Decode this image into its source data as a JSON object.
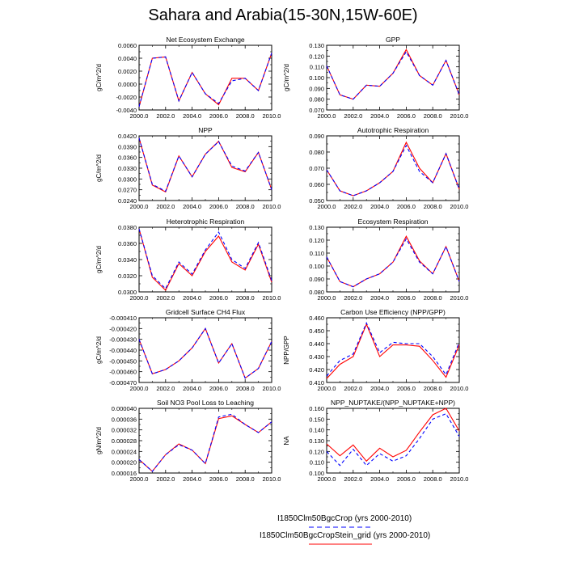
{
  "title": "Sahara and Arabia(15-30N,15W-60E)",
  "legend": [
    {
      "label": "I1850Clm50BgcCrop (yrs 2000-2010)",
      "color": "#0000ff",
      "dash": true
    },
    {
      "label": "I1850Clm50BgcCropStein_grid (yrs 2000-2010)",
      "color": "#ff0000",
      "dash": false
    }
  ],
  "chart_data": [
    {
      "type": "line",
      "title": "Net Ecosystem Exchange",
      "ylabel": "gC/m^2/d",
      "x": [
        2000,
        2001,
        2002,
        2003,
        2004,
        2005,
        2006,
        2007,
        2008,
        2009,
        2010
      ],
      "xticks": [
        2000,
        2002,
        2004,
        2006,
        2008,
        2010
      ],
      "xtick_labels": [
        "2000.0",
        "2002.0",
        "2004.0",
        "2006.0",
        "2008.0",
        "2010.0"
      ],
      "xlim": [
        2000,
        2010
      ],
      "ylim": [
        -0.004,
        0.006
      ],
      "yticks": [
        -0.004,
        -0.002,
        0,
        0.002,
        0.004,
        0.006
      ],
      "ytick_labels": [
        "-0.0040",
        "-0.0020",
        "0.0000",
        "0.0020",
        "0.0040",
        "0.0060"
      ],
      "series": [
        {
          "name": "I1850Clm50BgcCrop (yrs 2000-2010)",
          "color": "#0000ff",
          "dash": true,
          "values": [
            -0.0035,
            0.004,
            0.0042,
            -0.0026,
            0.0018,
            -0.0015,
            -0.003,
            0.0005,
            0.0009,
            -0.001,
            0.0048
          ]
        },
        {
          "name": "I1850Clm50BgcCropStein_grid (yrs 2000-2010)",
          "color": "#ff0000",
          "dash": false,
          "values": [
            -0.0035,
            0.004,
            0.0042,
            -0.0026,
            0.0018,
            -0.0015,
            -0.0032,
            0.0009,
            0.0009,
            -0.001,
            0.0048
          ]
        }
      ]
    },
    {
      "type": "line",
      "title": "GPP",
      "ylabel": "gC/m^2/d",
      "x": [
        2000,
        2001,
        2002,
        2003,
        2004,
        2005,
        2006,
        2007,
        2008,
        2009,
        2010
      ],
      "xticks": [
        2000,
        2002,
        2004,
        2006,
        2008,
        2010
      ],
      "xtick_labels": [
        "2000.0",
        "2002.0",
        "2004.0",
        "2006.0",
        "2008.0",
        "2010.0"
      ],
      "xlim": [
        2000,
        2010
      ],
      "ylim": [
        0.07,
        0.13
      ],
      "yticks": [
        0.07,
        0.08,
        0.09,
        0.1,
        0.11,
        0.12,
        0.13
      ],
      "ytick_labels": [
        "0.070",
        "0.080",
        "0.090",
        "0.100",
        "0.110",
        "0.120",
        "0.130"
      ],
      "series": [
        {
          "name": "I1850Clm50BgcCrop (yrs 2000-2010)",
          "color": "#0000ff",
          "dash": true,
          "values": [
            0.111,
            0.084,
            0.08,
            0.093,
            0.092,
            0.104,
            0.124,
            0.102,
            0.093,
            0.116,
            0.084
          ]
        },
        {
          "name": "I1850Clm50BgcCropStein_grid (yrs 2000-2010)",
          "color": "#ff0000",
          "dash": false,
          "values": [
            0.111,
            0.084,
            0.08,
            0.093,
            0.092,
            0.104,
            0.126,
            0.102,
            0.093,
            0.116,
            0.084
          ]
        }
      ]
    },
    {
      "type": "line",
      "title": "NPP",
      "ylabel": "gC/m^2/d",
      "x": [
        2000,
        2001,
        2002,
        2003,
        2004,
        2005,
        2006,
        2007,
        2008,
        2009,
        2010
      ],
      "xticks": [
        2000,
        2002,
        2004,
        2006,
        2008,
        2010
      ],
      "xtick_labels": [
        "2000.0",
        "2002.0",
        "2004.0",
        "2006.0",
        "2008.0",
        "2010.0"
      ],
      "xlim": [
        2000,
        2010
      ],
      "ylim": [
        0.024,
        0.042
      ],
      "yticks": [
        0.024,
        0.027,
        0.03,
        0.033,
        0.036,
        0.039,
        0.042
      ],
      "ytick_labels": [
        "0.0240",
        "0.0270",
        "0.0300",
        "0.0330",
        "0.0360",
        "0.0390",
        "0.0420"
      ],
      "series": [
        {
          "name": "I1850Clm50BgcCrop (yrs 2000-2010)",
          "color": "#0000ff",
          "dash": true,
          "values": [
            0.0414,
            0.0285,
            0.0266,
            0.0364,
            0.0306,
            0.0369,
            0.0404,
            0.0336,
            0.0322,
            0.0374,
            0.027
          ]
        },
        {
          "name": "I1850Clm50BgcCropStein_grid (yrs 2000-2010)",
          "color": "#ff0000",
          "dash": false,
          "values": [
            0.0414,
            0.0283,
            0.0264,
            0.0364,
            0.0306,
            0.0369,
            0.0405,
            0.0332,
            0.032,
            0.0374,
            0.027
          ]
        }
      ]
    },
    {
      "type": "line",
      "title": "Autotrophic Respiration",
      "ylabel": "",
      "x": [
        2000,
        2001,
        2002,
        2003,
        2004,
        2005,
        2006,
        2007,
        2008,
        2009,
        2010
      ],
      "xticks": [
        2000,
        2002,
        2004,
        2006,
        2008,
        2010
      ],
      "xtick_labels": [
        "2000.0",
        "2002.0",
        "2004.0",
        "2006.0",
        "2008.0",
        "2010.0"
      ],
      "xlim": [
        2000,
        2010
      ],
      "ylim": [
        0.05,
        0.09
      ],
      "yticks": [
        0.05,
        0.06,
        0.07,
        0.08,
        0.09
      ],
      "ytick_labels": [
        "0.050",
        "0.060",
        "0.070",
        "0.080",
        "0.090"
      ],
      "series": [
        {
          "name": "I1850Clm50BgcCrop (yrs 2000-2010)",
          "color": "#0000ff",
          "dash": true,
          "values": [
            0.069,
            0.056,
            0.053,
            0.056,
            0.061,
            0.068,
            0.084,
            0.068,
            0.061,
            0.079,
            0.057
          ]
        },
        {
          "name": "I1850Clm50BgcCropStein_grid (yrs 2000-2010)",
          "color": "#ff0000",
          "dash": false,
          "values": [
            0.069,
            0.056,
            0.053,
            0.056,
            0.061,
            0.068,
            0.086,
            0.07,
            0.061,
            0.079,
            0.057
          ]
        }
      ]
    },
    {
      "type": "line",
      "title": "Heterotrophic Respiration",
      "ylabel": "gC/m^2/d",
      "x": [
        2000,
        2001,
        2002,
        2003,
        2004,
        2005,
        2006,
        2007,
        2008,
        2009,
        2010
      ],
      "xticks": [
        2000,
        2002,
        2004,
        2006,
        2008,
        2010
      ],
      "xtick_labels": [
        "2000.0",
        "2002.0",
        "2004.0",
        "2006.0",
        "2008.0",
        "2010.0"
      ],
      "xlim": [
        2000,
        2010
      ],
      "ylim": [
        0.03,
        0.038
      ],
      "yticks": [
        0.03,
        0.032,
        0.034,
        0.036,
        0.038
      ],
      "ytick_labels": [
        "0.0300",
        "0.0320",
        "0.0340",
        "0.0360",
        "0.0380"
      ],
      "series": [
        {
          "name": "I1850Clm50BgcCrop (yrs 2000-2010)",
          "color": "#0000ff",
          "dash": true,
          "values": [
            0.0378,
            0.032,
            0.0304,
            0.0337,
            0.0322,
            0.0352,
            0.0374,
            0.034,
            0.0329,
            0.0361,
            0.0314
          ]
        },
        {
          "name": "I1850Clm50BgcCropStein_grid (yrs 2000-2010)",
          "color": "#ff0000",
          "dash": false,
          "values": [
            0.0378,
            0.0318,
            0.0302,
            0.0335,
            0.032,
            0.035,
            0.0369,
            0.0337,
            0.0327,
            0.0359,
            0.0312
          ]
        }
      ]
    },
    {
      "type": "line",
      "title": "Ecosystem Respiration",
      "ylabel": "",
      "x": [
        2000,
        2001,
        2002,
        2003,
        2004,
        2005,
        2006,
        2007,
        2008,
        2009,
        2010
      ],
      "xticks": [
        2000,
        2002,
        2004,
        2006,
        2008,
        2010
      ],
      "xtick_labels": [
        "2000.0",
        "2002.0",
        "2004.0",
        "2006.0",
        "2008.0",
        "2010.0"
      ],
      "xlim": [
        2000,
        2010
      ],
      "ylim": [
        0.08,
        0.13
      ],
      "yticks": [
        0.08,
        0.09,
        0.1,
        0.11,
        0.12,
        0.13
      ],
      "ytick_labels": [
        "0.080",
        "0.090",
        "0.100",
        "0.110",
        "0.120",
        "0.130"
      ],
      "series": [
        {
          "name": "I1850Clm50BgcCrop (yrs 2000-2010)",
          "color": "#0000ff",
          "dash": true,
          "values": [
            0.107,
            0.088,
            0.084,
            0.09,
            0.094,
            0.103,
            0.121,
            0.103,
            0.094,
            0.115,
            0.088
          ]
        },
        {
          "name": "I1850Clm50BgcCropStein_grid (yrs 2000-2010)",
          "color": "#ff0000",
          "dash": false,
          "values": [
            0.107,
            0.088,
            0.084,
            0.09,
            0.094,
            0.103,
            0.123,
            0.104,
            0.094,
            0.115,
            0.088
          ]
        }
      ]
    },
    {
      "type": "line",
      "title": "Gridcell Surface CH4 Flux",
      "ylabel": "gC/m^2/d",
      "x": [
        2000,
        2001,
        2002,
        2003,
        2004,
        2005,
        2006,
        2007,
        2008,
        2009,
        2010
      ],
      "xticks": [
        2000,
        2002,
        2004,
        2006,
        2008,
        2010
      ],
      "xtick_labels": [
        "2000.0",
        "2002.0",
        "2004.0",
        "2006.0",
        "2008.0",
        "2010.0"
      ],
      "xlim": [
        2000,
        2010
      ],
      "ylim": [
        -0.00047,
        -0.00041
      ],
      "yticks": [
        -0.00047,
        -0.00046,
        -0.00045,
        -0.00044,
        -0.00043,
        -0.00042,
        -0.00041
      ],
      "ytick_labels": [
        "-0.000470",
        "-0.000460",
        "-0.000450",
        "-0.000440",
        "-0.000430",
        "-0.000420",
        "-0.000410"
      ],
      "series": [
        {
          "name": "I1850Clm50BgcCrop (yrs 2000-2010)",
          "color": "#0000ff",
          "dash": true,
          "values": [
            -0.00043,
            -0.000462,
            -0.000458,
            -0.00045,
            -0.000438,
            -0.00042,
            -0.000452,
            -0.000434,
            -0.000466,
            -0.000457,
            -0.000432
          ]
        },
        {
          "name": "I1850Clm50BgcCropStein_grid (yrs 2000-2010)",
          "color": "#ff0000",
          "dash": false,
          "values": [
            -0.00043,
            -0.000462,
            -0.000458,
            -0.00045,
            -0.000438,
            -0.00042,
            -0.000452,
            -0.000434,
            -0.000466,
            -0.000457,
            -0.000432
          ]
        }
      ]
    },
    {
      "type": "line",
      "title": "Carbon Use Efficiency (NPP/GPP)",
      "ylabel": "NPP/GPP",
      "x": [
        2000,
        2001,
        2002,
        2003,
        2004,
        2005,
        2006,
        2007,
        2008,
        2009,
        2010
      ],
      "xticks": [
        2000,
        2002,
        2004,
        2006,
        2008,
        2010
      ],
      "xtick_labels": [
        "2000.0",
        "2002.0",
        "2004.0",
        "2006.0",
        "2008.0",
        "2010.0"
      ],
      "xlim": [
        2000,
        2010
      ],
      "ylim": [
        0.41,
        0.46
      ],
      "yticks": [
        0.41,
        0.42,
        0.43,
        0.44,
        0.45,
        0.46
      ],
      "ytick_labels": [
        "0.410",
        "0.420",
        "0.430",
        "0.440",
        "0.450",
        "0.460"
      ],
      "series": [
        {
          "name": "I1850Clm50BgcCrop (yrs 2000-2010)",
          "color": "#0000ff",
          "dash": true,
          "values": [
            0.415,
            0.427,
            0.432,
            0.456,
            0.433,
            0.441,
            0.44,
            0.44,
            0.43,
            0.416,
            0.441
          ]
        },
        {
          "name": "I1850Clm50BgcCropStein_grid (yrs 2000-2010)",
          "color": "#ff0000",
          "dash": false,
          "values": [
            0.413,
            0.424,
            0.43,
            0.455,
            0.43,
            0.439,
            0.439,
            0.438,
            0.427,
            0.414,
            0.439
          ]
        }
      ]
    },
    {
      "type": "line",
      "title": "Soil NO3 Pool Loss to Leaching",
      "ylabel": "gN/m^2/d",
      "x": [
        2000,
        2001,
        2002,
        2003,
        2004,
        2005,
        2006,
        2007,
        2008,
        2009,
        2010
      ],
      "xticks": [
        2000,
        2002,
        2004,
        2006,
        2008,
        2010
      ],
      "xtick_labels": [
        "2000.0",
        "2002.0",
        "2004.0",
        "2006.0",
        "2008.0",
        "2010.0"
      ],
      "xlim": [
        2000,
        2010
      ],
      "ylim": [
        1.6e-05,
        4e-05
      ],
      "yticks": [
        1.6e-05,
        2e-05,
        2.4e-05,
        2.8e-05,
        3.2e-05,
        3.6e-05,
        4e-05
      ],
      "ytick_labels": [
        "0.000016",
        "0.000020",
        "0.000024",
        "0.000028",
        "0.000032",
        "0.000036",
        "0.000040"
      ],
      "series": [
        {
          "name": "I1850Clm50BgcCrop (yrs 2000-2010)",
          "color": "#0000ff",
          "dash": true,
          "values": [
            2.1e-05,
            1.66e-05,
            2.28e-05,
            2.65e-05,
            2.45e-05,
            1.95e-05,
            3.68e-05,
            3.78e-05,
            3.4e-05,
            3.1e-05,
            3.5e-05
          ]
        },
        {
          "name": "I1850Clm50BgcCropStein_grid (yrs 2000-2010)",
          "color": "#ff0000",
          "dash": false,
          "values": [
            2.1e-05,
            1.66e-05,
            2.28e-05,
            2.68e-05,
            2.45e-05,
            1.95e-05,
            3.62e-05,
            3.72e-05,
            3.4e-05,
            3.1e-05,
            3.5e-05
          ]
        }
      ]
    },
    {
      "type": "line",
      "title": "NPP_NUPTAKE/(NPP_NUPTAKE+NPP)",
      "ylabel": "NA",
      "x": [
        2000,
        2001,
        2002,
        2003,
        2004,
        2005,
        2006,
        2007,
        2008,
        2009,
        2010
      ],
      "xticks": [
        2000,
        2002,
        2004,
        2006,
        2008,
        2010
      ],
      "xtick_labels": [
        "2000.0",
        "2002.0",
        "2004.0",
        "2006.0",
        "2008.0",
        "2010.0"
      ],
      "xlim": [
        2000,
        2010
      ],
      "ylim": [
        0.1,
        0.16
      ],
      "yticks": [
        0.1,
        0.11,
        0.12,
        0.13,
        0.14,
        0.15,
        0.16
      ],
      "ytick_labels": [
        "0.100",
        "0.110",
        "0.120",
        "0.130",
        "0.140",
        "0.150",
        "0.160"
      ],
      "series": [
        {
          "name": "I1850Clm50BgcCrop (yrs 2000-2010)",
          "color": "#0000ff",
          "dash": true,
          "values": [
            0.12,
            0.107,
            0.122,
            0.107,
            0.118,
            0.111,
            0.116,
            0.132,
            0.15,
            0.155,
            0.134
          ]
        },
        {
          "name": "I1850Clm50BgcCropStein_grid (yrs 2000-2010)",
          "color": "#ff0000",
          "dash": false,
          "values": [
            0.127,
            0.116,
            0.126,
            0.111,
            0.123,
            0.115,
            0.121,
            0.138,
            0.154,
            0.16,
            0.139
          ]
        }
      ]
    }
  ]
}
